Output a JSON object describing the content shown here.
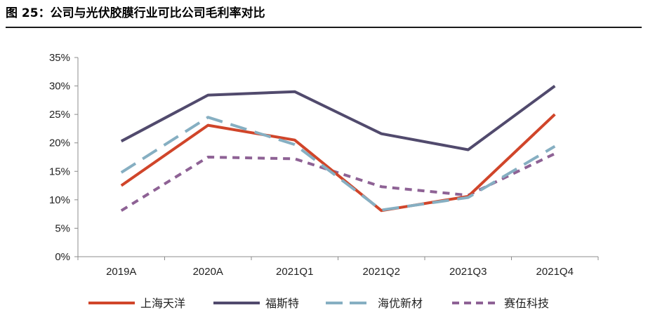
{
  "header": {
    "title": "图 25：公司与光伏胶膜行业可比公司毛利率对比"
  },
  "chart_data": {
    "type": "line",
    "title": "",
    "xlabel": "",
    "ylabel": "",
    "categories": [
      "2019A",
      "2020A",
      "2021Q1",
      "2021Q2",
      "2021Q3",
      "2021Q4"
    ],
    "y_ticks": [
      "0%",
      "5%",
      "10%",
      "15%",
      "20%",
      "25%",
      "30%",
      "35%"
    ],
    "ylim": [
      0,
      35
    ],
    "grid": false,
    "legend_position": "bottom",
    "series": [
      {
        "name": "上海天洋",
        "color": "#d0452a",
        "style": "solid",
        "values": [
          12.5,
          23.1,
          20.5,
          8.1,
          10.6,
          25.0
        ]
      },
      {
        "name": "福斯特",
        "color": "#514a6d",
        "style": "solid",
        "values": [
          20.3,
          28.4,
          29.0,
          21.6,
          18.8,
          30.0
        ]
      },
      {
        "name": "海优新材",
        "color": "#86afc2",
        "style": "longdash",
        "values": [
          14.8,
          24.5,
          19.7,
          8.2,
          10.4,
          19.4
        ]
      },
      {
        "name": "赛伍科技",
        "color": "#8e6295",
        "style": "dash",
        "values": [
          8.1,
          17.5,
          17.2,
          12.3,
          10.8,
          18.1
        ]
      }
    ]
  }
}
